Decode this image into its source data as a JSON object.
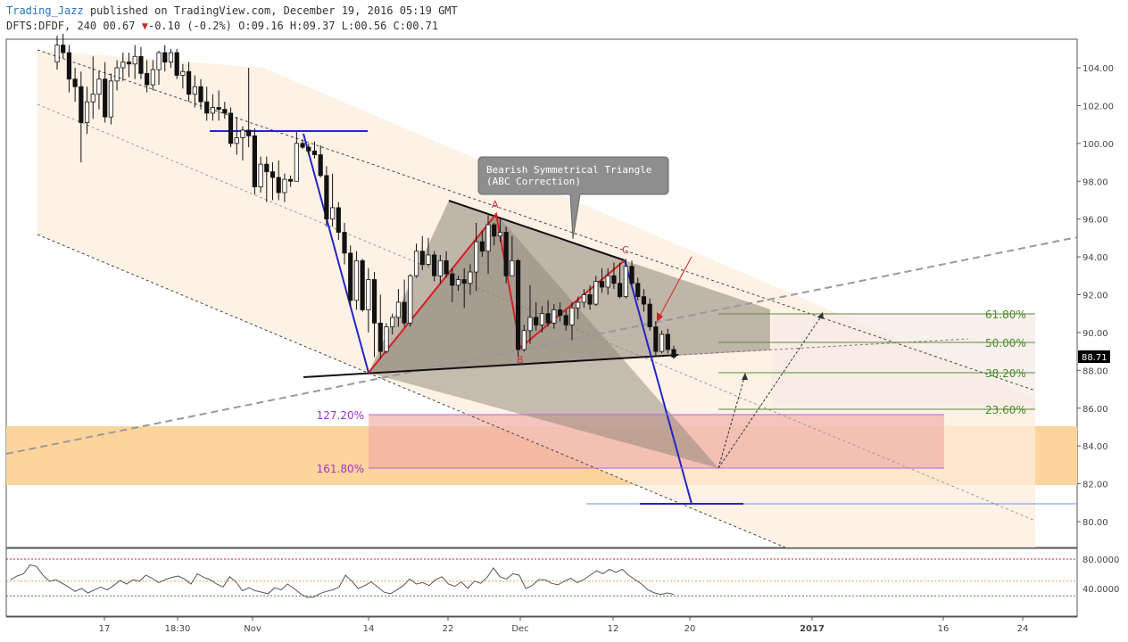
{
  "header": {
    "user": "Trading_Jazz",
    "published": "published on TradingView.com, December 19, 2016 05:19 GMT",
    "symbol_line_a": "DFTS:DFDF, 240 00.67",
    "change": "-0.10 (-0.2%)",
    "ohlc": "O:09.16 H:09.37 L:00.56 C:00.71"
  },
  "colors": {
    "channel_fill": "#fdeedd",
    "target_band": "#fdd49c",
    "projection_zone": "#f5e9e4",
    "triangle_fill": "#8c8476",
    "abc_line": "#d42020",
    "impulse_line": "#2424c8",
    "fib_line": "#5a8a3a",
    "ext_line": "#b368d6",
    "price_label_bg": "#000000"
  },
  "chart_data": {
    "type": "candlestick",
    "price_axis": {
      "ticks": [
        "104.00",
        "102.00",
        "100.00",
        "98.00",
        "96.00",
        "94.00",
        "92.00",
        "90.00",
        "88.00",
        "86.00",
        "84.00",
        "82.00",
        "80.00"
      ],
      "current_price": "88.71",
      "ylim": [
        78.5,
        106
      ]
    },
    "time_axis": {
      "ticks": [
        "17",
        "18:30",
        "Nov",
        "14",
        "22",
        "Dec",
        "12",
        "20",
        "2017",
        "16",
        "24"
      ],
      "bold_tick": "2017"
    },
    "candles": [
      {
        "o": 104.3,
        "h": 105.7,
        "l": 103.9,
        "c": 105.2
      },
      {
        "o": 105.2,
        "h": 105.8,
        "l": 104.5,
        "c": 104.8
      },
      {
        "o": 104.8,
        "h": 105.2,
        "l": 102.7,
        "c": 103.4
      },
      {
        "o": 103.4,
        "h": 104.0,
        "l": 102.2,
        "c": 103.0
      },
      {
        "o": 103.0,
        "h": 103.8,
        "l": 99.0,
        "c": 101.1
      },
      {
        "o": 101.1,
        "h": 103.0,
        "l": 100.5,
        "c": 102.2
      },
      {
        "o": 102.2,
        "h": 104.6,
        "l": 101.3,
        "c": 102.6
      },
      {
        "o": 102.6,
        "h": 103.8,
        "l": 101.8,
        "c": 103.4
      },
      {
        "o": 103.4,
        "h": 104.3,
        "l": 101.1,
        "c": 101.4
      },
      {
        "o": 101.4,
        "h": 103.7,
        "l": 101.0,
        "c": 103.3
      },
      {
        "o": 103.3,
        "h": 104.4,
        "l": 102.8,
        "c": 104.0
      },
      {
        "o": 104.0,
        "h": 104.8,
        "l": 103.3,
        "c": 104.3
      },
      {
        "o": 104.3,
        "h": 104.8,
        "l": 103.5,
        "c": 104.2
      },
      {
        "o": 104.2,
        "h": 105.2,
        "l": 103.4,
        "c": 104.6
      },
      {
        "o": 104.6,
        "h": 105.1,
        "l": 103.4,
        "c": 103.7
      },
      {
        "o": 103.7,
        "h": 104.4,
        "l": 102.7,
        "c": 103.1
      },
      {
        "o": 103.1,
        "h": 104.4,
        "l": 102.8,
        "c": 103.9
      },
      {
        "o": 103.9,
        "h": 104.9,
        "l": 103.1,
        "c": 104.8
      },
      {
        "o": 104.8,
        "h": 105.2,
        "l": 103.8,
        "c": 104.3
      },
      {
        "o": 104.3,
        "h": 105.0,
        "l": 104.0,
        "c": 104.8
      },
      {
        "o": 104.8,
        "h": 105.0,
        "l": 103.4,
        "c": 103.6
      },
      {
        "o": 103.6,
        "h": 104.2,
        "l": 102.9,
        "c": 103.8
      },
      {
        "o": 103.8,
        "h": 104.3,
        "l": 102.2,
        "c": 102.6
      },
      {
        "o": 102.6,
        "h": 103.6,
        "l": 101.9,
        "c": 103.0
      },
      {
        "o": 103.0,
        "h": 103.4,
        "l": 101.8,
        "c": 102.2
      },
      {
        "o": 102.2,
        "h": 103.0,
        "l": 101.2,
        "c": 101.6
      },
      {
        "o": 101.6,
        "h": 102.6,
        "l": 101.2,
        "c": 101.9
      },
      {
        "o": 101.9,
        "h": 102.8,
        "l": 101.2,
        "c": 101.8
      },
      {
        "o": 101.8,
        "h": 102.2,
        "l": 101.3,
        "c": 101.6
      },
      {
        "o": 101.6,
        "h": 101.9,
        "l": 99.8,
        "c": 100.0
      },
      {
        "o": 100.0,
        "h": 101.4,
        "l": 99.4,
        "c": 100.3
      },
      {
        "o": 100.3,
        "h": 100.9,
        "l": 99.1,
        "c": 100.7
      },
      {
        "o": 100.7,
        "h": 104.0,
        "l": 99.8,
        "c": 100.4
      },
      {
        "o": 100.4,
        "h": 100.8,
        "l": 97.3,
        "c": 97.7
      },
      {
        "o": 97.7,
        "h": 99.3,
        "l": 97.4,
        "c": 98.9
      },
      {
        "o": 98.9,
        "h": 99.3,
        "l": 96.9,
        "c": 98.5
      },
      {
        "o": 98.5,
        "h": 99.0,
        "l": 97.0,
        "c": 98.2
      },
      {
        "o": 98.2,
        "h": 99.1,
        "l": 97.0,
        "c": 97.4
      },
      {
        "o": 97.4,
        "h": 98.4,
        "l": 96.9,
        "c": 98.1
      },
      {
        "o": 98.1,
        "h": 98.3,
        "l": 97.7,
        "c": 98.0
      },
      {
        "o": 98.0,
        "h": 100.6,
        "l": 98.0,
        "c": 100.0
      },
      {
        "o": 100.0,
        "h": 100.2,
        "l": 99.7,
        "c": 99.8
      },
      {
        "o": 99.8,
        "h": 100.0,
        "l": 99.4,
        "c": 99.6
      },
      {
        "o": 99.6,
        "h": 100.1,
        "l": 99.2,
        "c": 99.4
      },
      {
        "o": 99.4,
        "h": 99.9,
        "l": 98.2,
        "c": 98.3
      },
      {
        "o": 98.3,
        "h": 98.8,
        "l": 95.6,
        "c": 96.0
      },
      {
        "o": 96.0,
        "h": 98.4,
        "l": 95.6,
        "c": 96.6
      },
      {
        "o": 96.6,
        "h": 96.9,
        "l": 94.9,
        "c": 95.3
      },
      {
        "o": 95.3,
        "h": 95.8,
        "l": 93.6,
        "c": 94.2
      },
      {
        "o": 94.2,
        "h": 94.6,
        "l": 91.4,
        "c": 91.7
      },
      {
        "o": 91.7,
        "h": 94.3,
        "l": 91.2,
        "c": 93.8
      },
      {
        "o": 93.8,
        "h": 93.9,
        "l": 91.1,
        "c": 91.2
      },
      {
        "o": 91.2,
        "h": 93.4,
        "l": 90.0,
        "c": 92.8
      },
      {
        "o": 92.8,
        "h": 93.2,
        "l": 88.7,
        "c": 90.5
      },
      {
        "o": 90.5,
        "h": 92.0,
        "l": 88.6,
        "c": 89.0
      },
      {
        "o": 89.0,
        "h": 90.5,
        "l": 88.9,
        "c": 90.3
      },
      {
        "o": 90.3,
        "h": 91.0,
        "l": 89.9,
        "c": 90.8
      },
      {
        "o": 90.8,
        "h": 92.3,
        "l": 90.3,
        "c": 91.6
      },
      {
        "o": 91.6,
        "h": 92.8,
        "l": 90.3,
        "c": 90.5
      },
      {
        "o": 90.5,
        "h": 93.1,
        "l": 90.3,
        "c": 93.0
      },
      {
        "o": 93.0,
        "h": 94.7,
        "l": 92.9,
        "c": 94.3
      },
      {
        "o": 94.3,
        "h": 95.1,
        "l": 93.3,
        "c": 93.6
      },
      {
        "o": 93.6,
        "h": 95.0,
        "l": 93.5,
        "c": 94.1
      },
      {
        "o": 94.1,
        "h": 94.3,
        "l": 92.7,
        "c": 93.0
      },
      {
        "o": 93.0,
        "h": 94.1,
        "l": 92.6,
        "c": 93.8
      },
      {
        "o": 93.8,
        "h": 94.3,
        "l": 92.9,
        "c": 93.1
      },
      {
        "o": 93.1,
        "h": 93.4,
        "l": 91.6,
        "c": 92.5
      },
      {
        "o": 92.5,
        "h": 93.0,
        "l": 92.2,
        "c": 92.8
      },
      {
        "o": 92.8,
        "h": 93.4,
        "l": 91.3,
        "c": 92.6
      },
      {
        "o": 92.6,
        "h": 93.6,
        "l": 92.0,
        "c": 93.2
      },
      {
        "o": 93.2,
        "h": 95.8,
        "l": 92.2,
        "c": 94.8
      },
      {
        "o": 94.8,
        "h": 95.4,
        "l": 94.0,
        "c": 94.3
      },
      {
        "o": 94.3,
        "h": 96.2,
        "l": 93.1,
        "c": 95.7
      },
      {
        "o": 95.7,
        "h": 95.8,
        "l": 94.6,
        "c": 95.1
      },
      {
        "o": 95.1,
        "h": 96.1,
        "l": 94.8,
        "c": 95.3
      },
      {
        "o": 95.3,
        "h": 95.6,
        "l": 92.6,
        "c": 93.0
      },
      {
        "o": 93.0,
        "h": 95.1,
        "l": 93.0,
        "c": 93.8
      },
      {
        "o": 93.8,
        "h": 93.9,
        "l": 88.5,
        "c": 89.1
      },
      {
        "o": 89.1,
        "h": 90.4,
        "l": 89.0,
        "c": 90.1
      },
      {
        "o": 90.1,
        "h": 92.5,
        "l": 89.4,
        "c": 90.8
      },
      {
        "o": 90.8,
        "h": 91.6,
        "l": 90.1,
        "c": 90.4
      },
      {
        "o": 90.4,
        "h": 91.4,
        "l": 90.0,
        "c": 91.0
      },
      {
        "o": 91.0,
        "h": 91.7,
        "l": 90.3,
        "c": 90.5
      },
      {
        "o": 90.5,
        "h": 91.5,
        "l": 90.2,
        "c": 91.2
      },
      {
        "o": 91.2,
        "h": 91.6,
        "l": 90.6,
        "c": 90.9
      },
      {
        "o": 90.9,
        "h": 91.2,
        "l": 90.1,
        "c": 90.4
      },
      {
        "o": 90.4,
        "h": 91.6,
        "l": 89.6,
        "c": 91.3
      },
      {
        "o": 91.3,
        "h": 91.9,
        "l": 90.7,
        "c": 91.6
      },
      {
        "o": 91.6,
        "h": 92.3,
        "l": 91.3,
        "c": 92.0
      },
      {
        "o": 92.0,
        "h": 92.5,
        "l": 91.2,
        "c": 91.5
      },
      {
        "o": 91.5,
        "h": 93.0,
        "l": 91.4,
        "c": 92.7
      },
      {
        "o": 92.7,
        "h": 93.4,
        "l": 92.1,
        "c": 92.4
      },
      {
        "o": 92.4,
        "h": 93.4,
        "l": 92.0,
        "c": 93.0
      },
      {
        "o": 93.0,
        "h": 93.7,
        "l": 92.3,
        "c": 92.6
      },
      {
        "o": 92.6,
        "h": 93.7,
        "l": 91.8,
        "c": 91.9
      },
      {
        "o": 91.9,
        "h": 93.9,
        "l": 91.8,
        "c": 93.5
      },
      {
        "o": 93.5,
        "h": 93.8,
        "l": 92.5,
        "c": 92.6
      },
      {
        "o": 92.6,
        "h": 92.9,
        "l": 91.7,
        "c": 91.9
      },
      {
        "o": 91.9,
        "h": 92.3,
        "l": 91.1,
        "c": 91.5
      },
      {
        "o": 91.5,
        "h": 91.8,
        "l": 90.1,
        "c": 90.3
      },
      {
        "o": 90.3,
        "h": 90.6,
        "l": 88.8,
        "c": 89.0
      },
      {
        "o": 89.0,
        "h": 90.1,
        "l": 88.9,
        "c": 89.9
      },
      {
        "o": 89.9,
        "h": 90.2,
        "l": 88.9,
        "c": 89.1
      },
      {
        "o": 89.1,
        "h": 89.3,
        "l": 88.6,
        "c": 88.7
      }
    ],
    "rsi": {
      "axis_ticks": [
        "80.0000",
        "40.0000"
      ],
      "upper": 80,
      "lower": 30,
      "ylim": [
        25,
        85
      ],
      "values": [
        52,
        57,
        60,
        72,
        70,
        58,
        50,
        52,
        47,
        42,
        36,
        40,
        34,
        38,
        42,
        38,
        44,
        51,
        46,
        52,
        50,
        58,
        54,
        48,
        52,
        55,
        57,
        53,
        46,
        60,
        55,
        52,
        46,
        42,
        56,
        49,
        37,
        41,
        37,
        35,
        33,
        41,
        38,
        46,
        40,
        33,
        28,
        28,
        33,
        36,
        38,
        42,
        58,
        50,
        40,
        44,
        49,
        42,
        35,
        33,
        38,
        44,
        53,
        46,
        48,
        44,
        52,
        56,
        46,
        43,
        49,
        40,
        50,
        47,
        55,
        68,
        56,
        53,
        60,
        58,
        40,
        44,
        52,
        52,
        47,
        45,
        50,
        54,
        48,
        52,
        58,
        64,
        60,
        66,
        62,
        66,
        58,
        52,
        46,
        38,
        34,
        32,
        34,
        32
      ]
    }
  },
  "labels": {
    "callout": [
      "Bearish Symmetrical Triangle",
      "(ABC Correction)"
    ],
    "point_a": "A",
    "point_b": "B",
    "point_c": "C",
    "fib": [
      "61.80%",
      "50.00%",
      "38.20%",
      "23.60%"
    ],
    "ext": [
      "127.20%",
      "161.80%"
    ]
  }
}
